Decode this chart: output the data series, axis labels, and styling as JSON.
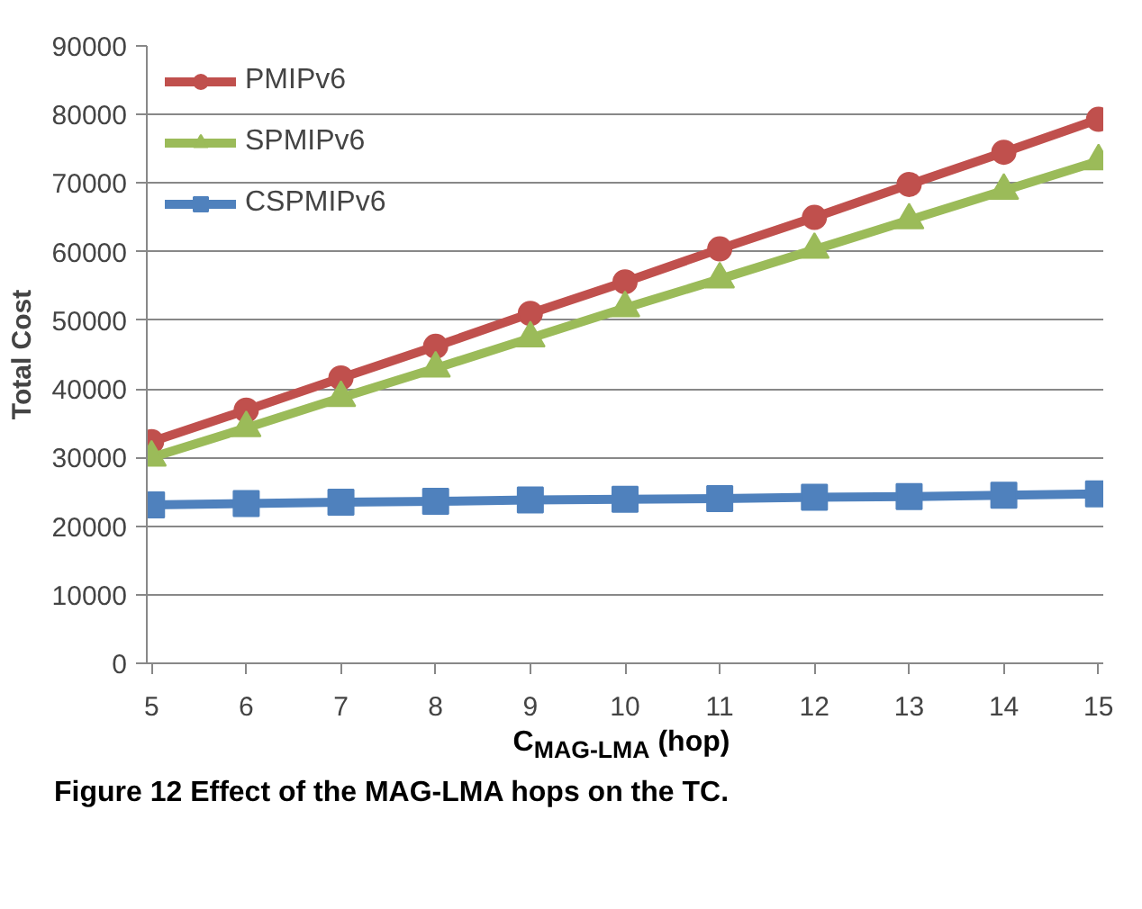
{
  "chart_data": {
    "type": "line",
    "ylabel": "Total Cost",
    "xlabel": "C$_{MAG-LMA}$ (hop)",
    "annotations": [
      "Figure 12 Effect of the MAG-LMA hops on the TC."
    ],
    "categories": [
      "5",
      "6",
      "7",
      "8",
      "9",
      "10",
      "11",
      "12",
      "13",
      "14",
      "15"
    ],
    "series": [
      {
        "name": "PMIPv6",
        "color": "#c0504d",
        "marker": "circle",
        "values": [
          32300,
          36900,
          41600,
          46200,
          51000,
          55600,
          60400,
          65000,
          69800,
          74500,
          79300
        ]
      },
      {
        "name": "SPMIPv6",
        "color": "#9bbb59",
        "marker": "triangle",
        "values": [
          30000,
          34300,
          38700,
          43000,
          47400,
          51800,
          56000,
          60300,
          64600,
          68900,
          73200
        ]
      },
      {
        "name": "CSPMIPv6",
        "color": "#4f81bd",
        "marker": "square",
        "values": [
          23100,
          23300,
          23500,
          23600,
          23800,
          23900,
          24000,
          24200,
          24300,
          24500,
          24700
        ]
      }
    ],
    "ylim": [
      0,
      90000
    ],
    "yticks": [
      0,
      10000,
      20000,
      30000,
      40000,
      50000,
      60000,
      70000,
      80000,
      90000
    ],
    "grid": "y",
    "legend": "top left",
    "line_style": "solid"
  }
}
